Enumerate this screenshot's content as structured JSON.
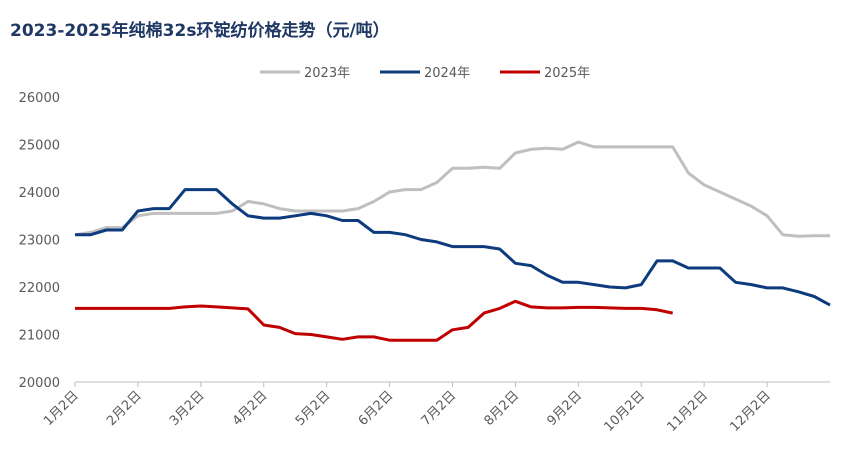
{
  "chart_data": {
    "type": "line",
    "title": "2023-2025年纯棉32s环锭纺价格走势（元/吨）",
    "categories": [
      "1月2日",
      null,
      null,
      null,
      "2月2日",
      null,
      null,
      null,
      "3月2日",
      null,
      null,
      null,
      "4月2日",
      null,
      null,
      null,
      "5月2日",
      null,
      null,
      null,
      "6月2日",
      null,
      null,
      null,
      "7月2日",
      null,
      null,
      null,
      "8月2日",
      null,
      null,
      null,
      "9月2日",
      null,
      null,
      null,
      "10月2日",
      null,
      null,
      null,
      "11月2日",
      null,
      null,
      null,
      "12月2日",
      null,
      null,
      null,
      null
    ],
    "series": [
      {
        "name": "2023年",
        "color": "#bfbfbf",
        "values": [
          23100,
          23150,
          23250,
          23250,
          23500,
          23550,
          23550,
          23550,
          23550,
          23550,
          23600,
          23800,
          23750,
          23650,
          23600,
          23600,
          23600,
          23600,
          23650,
          23800,
          24000,
          24050,
          24050,
          24200,
          24500,
          24500,
          24520,
          24500,
          24820,
          24900,
          24920,
          24900,
          25050,
          24950,
          24950,
          24950,
          24950,
          24950,
          24950,
          24400,
          24150,
          24000,
          23850,
          23700,
          23500,
          23100,
          23070,
          23080,
          23080
        ]
      },
      {
        "name": "2024年",
        "color": "#0e3a7e",
        "values": [
          23100,
          23100,
          23200,
          23200,
          23600,
          23650,
          23650,
          24050,
          24050,
          24050,
          23750,
          23500,
          23450,
          23450,
          23500,
          23550,
          23500,
          23400,
          23400,
          23150,
          23150,
          23100,
          23000,
          22950,
          22850,
          22850,
          22850,
          22800,
          22500,
          22450,
          22250,
          22100,
          22100,
          22050,
          22000,
          21980,
          22050,
          22550,
          22550,
          22400,
          22400,
          22400,
          22100,
          22050,
          21980,
          21980,
          21900,
          21800,
          21620
        ]
      },
      {
        "name": "2025年",
        "color": "#c00000",
        "values": [
          21550,
          21550,
          21550,
          21550,
          21550,
          21550,
          21550,
          21580,
          21600,
          21580,
          21560,
          21540,
          21200,
          21150,
          21020,
          21000,
          20950,
          20900,
          20950,
          20950,
          20880,
          20880,
          20880,
          20880,
          21100,
          21150,
          21450,
          21550,
          21700,
          21580,
          21560,
          21560,
          21570,
          21570,
          21560,
          21550,
          21550,
          21520,
          21450,
          null,
          null,
          null,
          null,
          null,
          null,
          null,
          null,
          null,
          null
        ]
      }
    ],
    "ylim": [
      20000,
      26000
    ],
    "yticks": [
      20000,
      21000,
      22000,
      23000,
      24000,
      25000,
      26000
    ],
    "grid": false,
    "legend": "top"
  }
}
